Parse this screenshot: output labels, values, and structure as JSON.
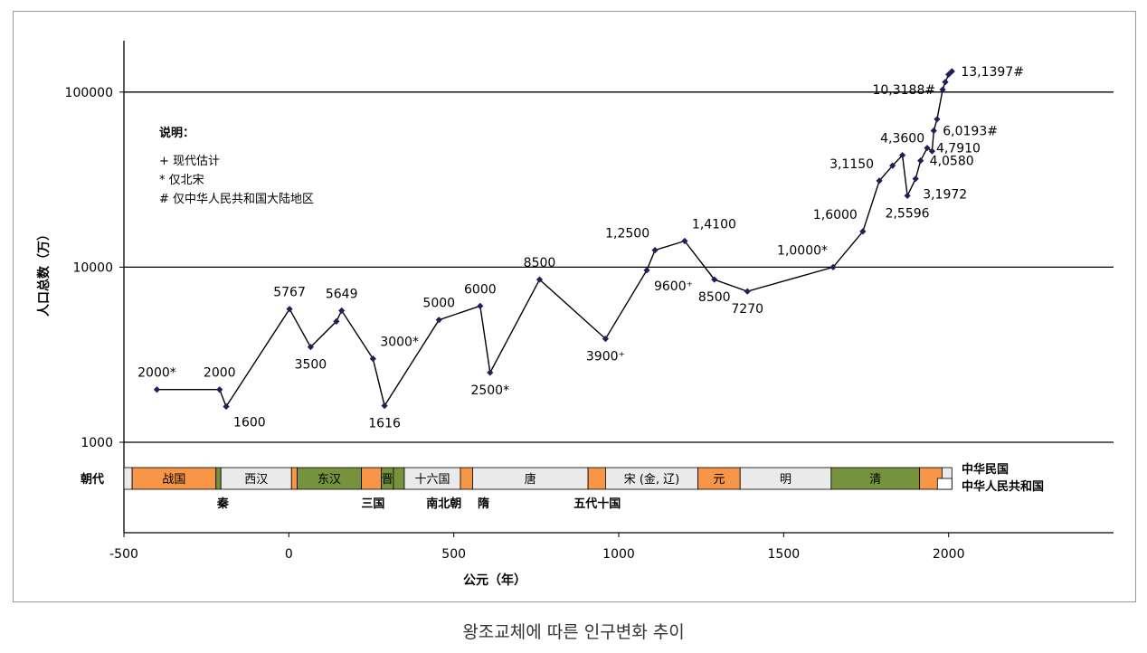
{
  "caption": "왕조교체에 따른 인구변화 추이",
  "chart_data": {
    "type": "line",
    "xlabel": "公元（年）",
    "ylabel": "人口总数（万）",
    "yscale": "log",
    "xlim": [
      -500,
      2500
    ],
    "ylim": [
      1000,
      200000
    ],
    "x_ticks": [
      "-500",
      "0",
      "500",
      "1000",
      "1500",
      "2000"
    ],
    "y_ticks": [
      "1000",
      "10000",
      "100000"
    ],
    "grid": "horizontal",
    "legend": {
      "title": "说明：",
      "items": [
        "+ 现代估计",
        "* 仅北宋",
        "# 仅中华人民共和国大陆地区"
      ]
    },
    "line_color": "#000000",
    "marker_color": "#1f1f5a",
    "points": [
      {
        "x": -400,
        "y": 2000
      },
      {
        "x": -210,
        "y": 2000
      },
      {
        "x": -190,
        "y": 1600
      },
      {
        "x": 2,
        "y": 5767
      },
      {
        "x": 66,
        "y": 3500
      },
      {
        "x": 144,
        "y": 4900
      },
      {
        "x": 160,
        "y": 5649
      },
      {
        "x": 255,
        "y": 3000
      },
      {
        "x": 290,
        "y": 1616
      },
      {
        "x": 455,
        "y": 5000
      },
      {
        "x": 580,
        "y": 6000
      },
      {
        "x": 610,
        "y": 2500
      },
      {
        "x": 760,
        "y": 8500
      },
      {
        "x": 960,
        "y": 3900
      },
      {
        "x": 1085,
        "y": 9600
      },
      {
        "x": 1110,
        "y": 12500
      },
      {
        "x": 1200,
        "y": 14100
      },
      {
        "x": 1290,
        "y": 8500
      },
      {
        "x": 1390,
        "y": 7270
      },
      {
        "x": 1650,
        "y": 10000
      },
      {
        "x": 1740,
        "y": 16000
      },
      {
        "x": 1790,
        "y": 31150
      },
      {
        "x": 1830,
        "y": 38000
      },
      {
        "x": 1860,
        "y": 43600
      },
      {
        "x": 1875,
        "y": 25596
      },
      {
        "x": 1900,
        "y": 31972
      },
      {
        "x": 1915,
        "y": 40580
      },
      {
        "x": 1935,
        "y": 47910
      },
      {
        "x": 1950,
        "y": 46000
      },
      {
        "x": 1955,
        "y": 60193
      },
      {
        "x": 1965,
        "y": 70000
      },
      {
        "x": 1982,
        "y": 103188
      },
      {
        "x": 1990,
        "y": 114000
      },
      {
        "x": 2000,
        "y": 126000
      },
      {
        "x": 2010,
        "y": 131397
      }
    ],
    "data_labels": [
      {
        "text": "2000*",
        "x": -400,
        "y": 2000,
        "pos": "above"
      },
      {
        "text": "2000",
        "x": -210,
        "y": 2000,
        "pos": "above"
      },
      {
        "text": "1600",
        "x": -190,
        "y": 1600,
        "pos": "below-right"
      },
      {
        "text": "5767",
        "x": 2,
        "y": 5767,
        "pos": "above"
      },
      {
        "text": "3500",
        "x": 66,
        "y": 3500,
        "pos": "below"
      },
      {
        "text": "5649",
        "x": 160,
        "y": 5649,
        "pos": "above"
      },
      {
        "text": "3000*",
        "x": 255,
        "y": 3000,
        "pos": "above-right"
      },
      {
        "text": "1616",
        "x": 290,
        "y": 1616,
        "pos": "below"
      },
      {
        "text": "5000",
        "x": 455,
        "y": 5000,
        "pos": "above"
      },
      {
        "text": "6000",
        "x": 580,
        "y": 6000,
        "pos": "above"
      },
      {
        "text": "2500*",
        "x": 610,
        "y": 2500,
        "pos": "below"
      },
      {
        "text": "8500",
        "x": 760,
        "y": 8500,
        "pos": "above"
      },
      {
        "text": "3900⁺",
        "x": 960,
        "y": 3900,
        "pos": "below"
      },
      {
        "text": "9600⁺",
        "x": 1085,
        "y": 9600,
        "pos": "below-right"
      },
      {
        "text": "1,2500",
        "x": 1110,
        "y": 12500,
        "pos": "above-left"
      },
      {
        "text": "1,4100",
        "x": 1200,
        "y": 14100,
        "pos": "above-right"
      },
      {
        "text": "8500",
        "x": 1290,
        "y": 8500,
        "pos": "below"
      },
      {
        "text": "7270",
        "x": 1390,
        "y": 7270,
        "pos": "below"
      },
      {
        "text": "1,0000*",
        "x": 1650,
        "y": 10000,
        "pos": "above-left"
      },
      {
        "text": "1,6000",
        "x": 1740,
        "y": 16000,
        "pos": "above-left"
      },
      {
        "text": "3,1150",
        "x": 1790,
        "y": 31150,
        "pos": "above-left"
      },
      {
        "text": "4,3600",
        "x": 1860,
        "y": 43600,
        "pos": "above"
      },
      {
        "text": "2,5596",
        "x": 1875,
        "y": 25596,
        "pos": "below"
      },
      {
        "text": "3,1972",
        "x": 1900,
        "y": 31972,
        "pos": "below-right"
      },
      {
        "text": "4,0580",
        "x": 1915,
        "y": 40580,
        "pos": "right"
      },
      {
        "text": "4,7910",
        "x": 1935,
        "y": 47910,
        "pos": "right"
      },
      {
        "text": "6,0193#",
        "x": 1955,
        "y": 60193,
        "pos": "right"
      },
      {
        "text": "10,3188#",
        "x": 1982,
        "y": 103188,
        "pos": "left"
      },
      {
        "text": "13,1397#",
        "x": 2010,
        "y": 131397,
        "pos": "right"
      }
    ],
    "dynasty_band": {
      "label": "朝代",
      "segments": [
        {
          "name": "",
          "start": -500,
          "end": -475,
          "color": "#eaeaea"
        },
        {
          "name": "战国",
          "start": -475,
          "end": -221,
          "color": "#f79646"
        },
        {
          "name": "",
          "start": -221,
          "end": -206,
          "color": "#76923c"
        },
        {
          "name": "西汉",
          "start": -206,
          "end": 8,
          "color": "#eaeaea"
        },
        {
          "name": "",
          "start": 8,
          "end": 25,
          "color": "#f79646"
        },
        {
          "name": "东汉",
          "start": 25,
          "end": 220,
          "color": "#76923c"
        },
        {
          "name": "",
          "start": 220,
          "end": 280,
          "color": "#f79646"
        },
        {
          "name": "晋",
          "start": 280,
          "end": 317,
          "color": "#76923c"
        },
        {
          "name": "",
          "start": 317,
          "end": 350,
          "color": "#76923c"
        },
        {
          "name": "十六国",
          "start": 350,
          "end": 520,
          "color": "#eaeaea"
        },
        {
          "name": "",
          "start": 520,
          "end": 557,
          "color": "#f79646"
        },
        {
          "name": "唐",
          "start": 557,
          "end": 907,
          "color": "#eaeaea"
        },
        {
          "name": "",
          "start": 907,
          "end": 960,
          "color": "#f79646"
        },
        {
          "name": "宋 (金, 辽)",
          "start": 960,
          "end": 1240,
          "color": "#eaeaea"
        },
        {
          "name": "元",
          "start": 1240,
          "end": 1368,
          "color": "#f79646"
        },
        {
          "name": "明",
          "start": 1368,
          "end": 1644,
          "color": "#eaeaea"
        },
        {
          "name": "清",
          "start": 1644,
          "end": 1912,
          "color": "#76923c"
        },
        {
          "name": "",
          "start": 1912,
          "end": 1980,
          "color": "#f79646"
        },
        {
          "name": "",
          "start": 1980,
          "end": 2010,
          "color": "#eaeaea"
        }
      ],
      "below_labels": [
        {
          "text": "秦",
          "x": -200
        },
        {
          "text": "三国",
          "x": 255
        },
        {
          "text": "南北朝",
          "x": 470
        },
        {
          "text": "隋",
          "x": 590
        },
        {
          "text": "五代十国",
          "x": 935
        }
      ],
      "right_labels": [
        "中华民国",
        "中华人民共和国"
      ]
    }
  }
}
